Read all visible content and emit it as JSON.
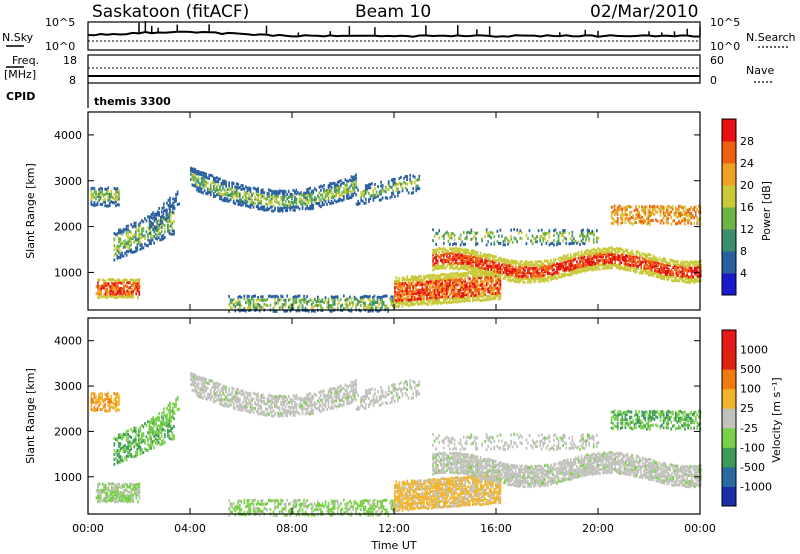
{
  "header": {
    "station": "Saskatoon (fitACF)",
    "beam": "Beam 10",
    "date": "02/Mar/2010"
  },
  "panels": {
    "nsky": {
      "label": "N.Sky",
      "ticks_left": [
        "10^5",
        "10^0"
      ],
      "ticks_right": [
        "10^5",
        "10^0"
      ],
      "right_label": "N.Search"
    },
    "freq": {
      "label_line1": "Freq.",
      "label_line2": "[MHz]",
      "ticks_left": [
        "18",
        "8"
      ],
      "ticks_right": [
        "60",
        "0"
      ],
      "right_label": "Nave"
    },
    "cpid": {
      "label": "CPID",
      "value": "themis 3300"
    }
  },
  "x_axis": {
    "label": "Time UT",
    "ticks": [
      "00:00",
      "04:00",
      "08:00",
      "12:00",
      "16:00",
      "20:00",
      "00:00"
    ]
  },
  "chart_data": [
    {
      "type": "heatmap",
      "name": "power",
      "xlabel": "Time UT",
      "ylabel": "Slant Range [km]",
      "xlim": [
        0,
        24
      ],
      "ylim": [
        180,
        4500
      ],
      "y_ticks": [
        "1000",
        "2000",
        "3000",
        "4000"
      ],
      "colorbar": {
        "label": "Power [dB]",
        "ticks": [
          "4",
          "8",
          "12",
          "16",
          "20",
          "24",
          "28"
        ],
        "colors": [
          "#1a1acc",
          "#2a5fa0",
          "#3c8c6e",
          "#6fb447",
          "#c9c93a",
          "#f0a020",
          "#f06010",
          "#e81010"
        ]
      }
    },
    {
      "type": "heatmap",
      "name": "velocity",
      "xlabel": "Time UT",
      "ylabel": "Slant Range [km]",
      "xlim": [
        0,
        24
      ],
      "ylim": [
        180,
        4500
      ],
      "y_ticks": [
        "1000",
        "2000",
        "3000",
        "4000"
      ],
      "colorbar": {
        "label": "Velocity [m s⁻¹]",
        "ticks": [
          "1000",
          "500",
          "100",
          "25",
          "-25",
          "-100",
          "-500",
          "-1000"
        ],
        "colors": [
          "#1a2ea8",
          "#2a6aa0",
          "#3e9a58",
          "#7bd04a",
          "#c2c2bc",
          "#f2b42a",
          "#f07a10",
          "#e02010",
          "#e41a1a"
        ]
      }
    }
  ]
}
